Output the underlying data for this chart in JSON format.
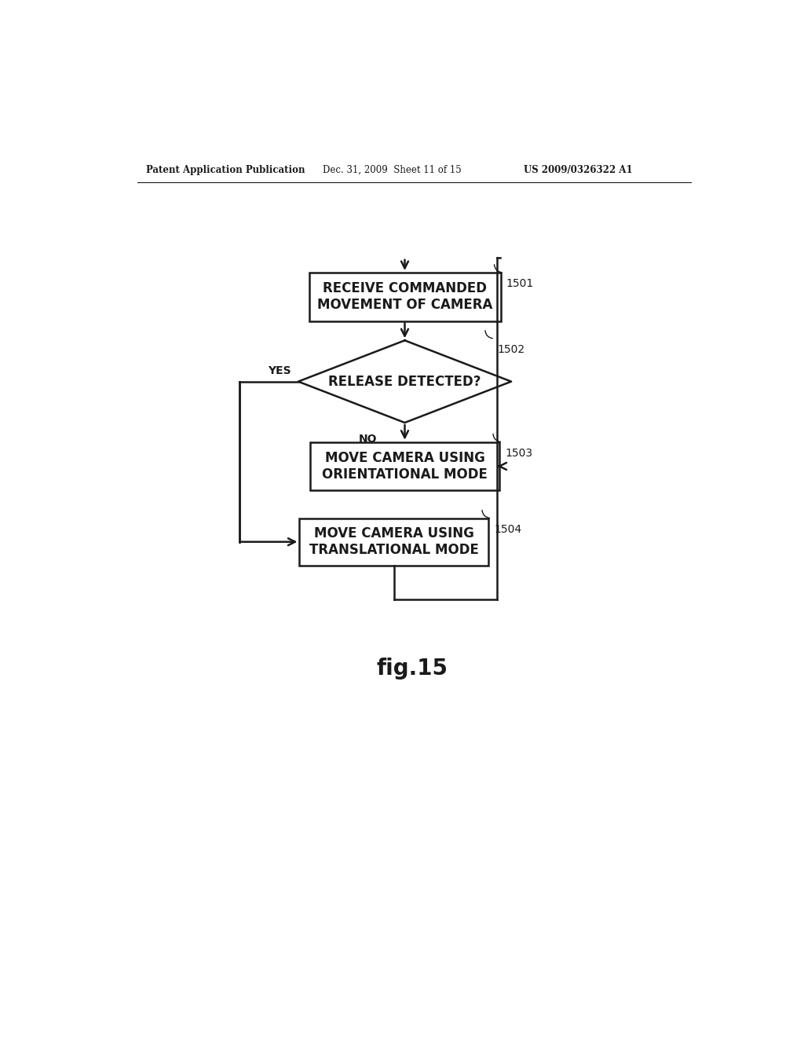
{
  "bg_color": "#ffffff",
  "header_left": "Patent Application Publication",
  "header_mid": "Dec. 31, 2009  Sheet 11 of 15",
  "header_right": "US 2009/0326322 A1",
  "fig_label": "fig.15",
  "box1_text": "RECEIVE COMMANDED\nMOVEMENT OF CAMERA",
  "box1_label": "1501",
  "diamond_text": "RELEASE DETECTED?",
  "diamond_label": "1502",
  "box3_text": "MOVE CAMERA USING\nORIENTATIONAL MODE",
  "box3_label": "1503",
  "box4_text": "MOVE CAMERA USING\nTRANSLATIONAL MODE",
  "box4_label": "1504",
  "yes_label": "YES",
  "no_label": "NO",
  "line_color": "#1a1a1a",
  "text_color": "#1a1a1a",
  "box_fill": "#ffffff",
  "font_size_box": 12,
  "font_size_label": 10,
  "font_size_header": 8.5,
  "font_size_fig": 20
}
